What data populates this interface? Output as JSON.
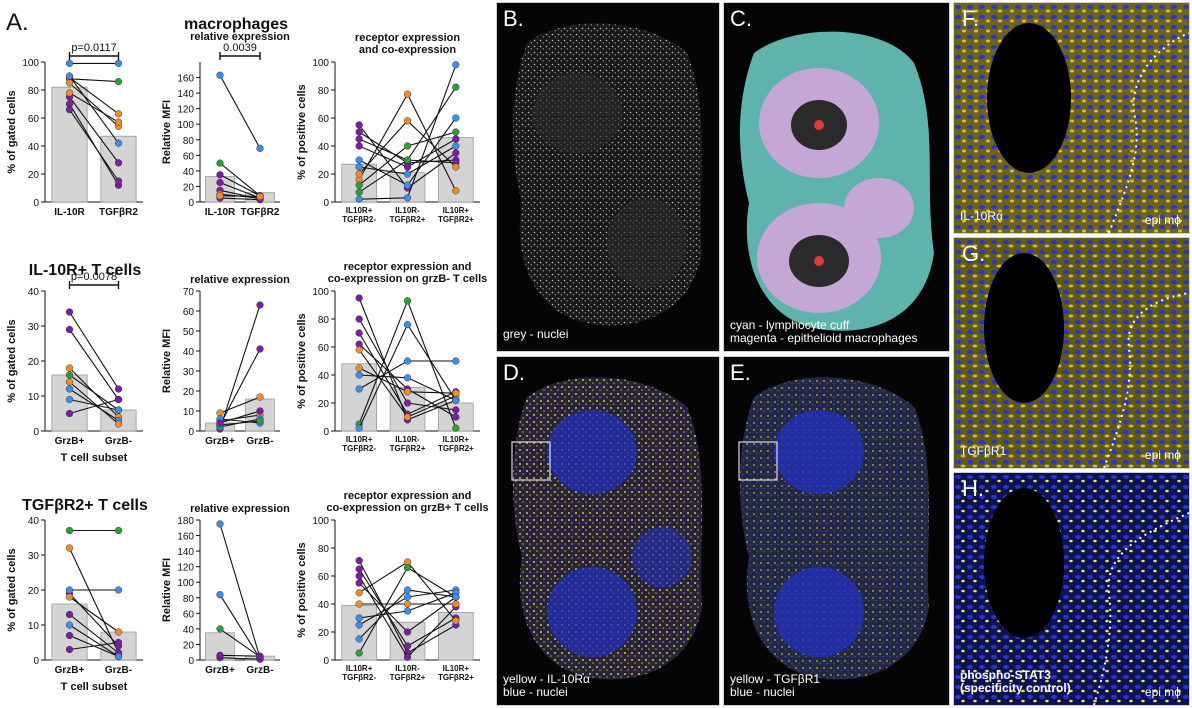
{
  "left": {
    "panel_letter": "A.",
    "row1": {
      "group_title": "macrophages",
      "c1": {
        "ylabel": "% of gated cells",
        "pvalue": "p=0.0117",
        "xlabel": ""
      },
      "c2": {
        "title": "relative expression",
        "ylabel": "Relative MFI",
        "pvalue": "0.0039"
      },
      "c3": {
        "title": "receptor expression\nand co-expression",
        "ylabel": "% of positive cells"
      }
    },
    "row2": {
      "group_title": "IL-10R+ T cells",
      "c1": {
        "ylabel": "% of gated cells",
        "pvalue": "p=0.0078",
        "xlabel": "T cell subset"
      },
      "c2": {
        "title": "relative expression",
        "ylabel": "Relative MFI"
      },
      "c3": {
        "title": "receptor expression and\nco-expression on grzB- T cells",
        "ylabel": "% of positive cells"
      }
    },
    "row3": {
      "group_title": "TGFβR2+ T cells",
      "c1": {
        "ylabel": "% of gated cells",
        "xlabel": "T cell subset"
      },
      "c2": {
        "title": "relative expression",
        "ylabel": "Relative MFI"
      },
      "c3": {
        "title": "receptor expression and\nco-expression on grzB+ T cells",
        "ylabel": "% of positive cells"
      }
    }
  },
  "micro": {
    "B": {
      "letter": "B.",
      "caption": "grey - nuclei"
    },
    "C": {
      "letter": "C.",
      "caption": "cyan - lymphocyte cuff\nmagenta - epithelioid macrophages"
    },
    "D": {
      "letter": "D.",
      "caption": "yellow - IL-10Rα\nblue - nuclei"
    },
    "E": {
      "letter": "E.",
      "caption": "yellow - TGFβR1\nblue - nuclei"
    },
    "F": {
      "letter": "F.",
      "caption": "IL-10Rα",
      "corner": "epi mϕ"
    },
    "G": {
      "letter": "G.",
      "caption": "TGFβR1",
      "corner": "epi mϕ"
    },
    "H": {
      "letter": "H.",
      "caption": "phospho-STAT3\n(specificity control)",
      "corner": "epi mϕ"
    }
  },
  "colors": {
    "purple": "#7b1fa2",
    "orange": "#f28c28",
    "green": "#2e9e3a",
    "blue": "#3d8ee6",
    "bar": "#d4d4d4",
    "yellow": "#d9c93a",
    "nuclei_blue": "#1f2fb8",
    "cyan": "#6fd3c9",
    "magenta": "#c5a7d6"
  },
  "chart_data": [
    {
      "type": "bar",
      "id": "A-r1-c1",
      "title": "",
      "categories": [
        "IL-10R",
        "TGFβR2"
      ],
      "values": [
        82,
        47
      ],
      "ylabel": "% of gated cells",
      "ylim": [
        0,
        100
      ],
      "yticks": [
        0,
        20,
        40,
        60,
        80,
        100
      ],
      "annotation": "p=0.0117",
      "paired": [
        {
          "color": "purple",
          "v": [
            70,
            12
          ]
        },
        {
          "color": "purple",
          "v": [
            75,
            28
          ]
        },
        {
          "color": "green",
          "v": [
            88,
            86
          ]
        },
        {
          "color": "blue",
          "v": [
            99,
            99
          ]
        },
        {
          "color": "orange",
          "v": [
            89,
            63
          ]
        },
        {
          "color": "orange",
          "v": [
            85,
            54
          ]
        },
        {
          "color": "blue",
          "v": [
            90,
            42
          ]
        },
        {
          "color": "purple",
          "v": [
            66,
            15
          ]
        },
        {
          "color": "orange",
          "v": [
            78,
            57
          ]
        }
      ]
    },
    {
      "type": "bar",
      "id": "A-r1-c2",
      "title": "relative expression",
      "categories": [
        "IL-10R",
        "TGFβR2"
      ],
      "values": [
        33,
        12
      ],
      "ylabel": "Relative MFI",
      "ylim": [
        0,
        180
      ],
      "yticks": [
        0,
        20,
        40,
        60,
        80,
        100,
        120,
        140,
        160
      ],
      "annotation": "0.0039",
      "paired": [
        {
          "color": "blue",
          "v": [
            163,
            69
          ]
        },
        {
          "color": "green",
          "v": [
            50,
            8
          ]
        },
        {
          "color": "purple",
          "v": [
            35,
            8
          ]
        },
        {
          "color": "purple",
          "v": [
            25,
            5
          ]
        },
        {
          "color": "purple",
          "v": [
            15,
            4
          ]
        },
        {
          "color": "orange",
          "v": [
            10,
            5
          ]
        },
        {
          "color": "purple",
          "v": [
            5,
            3
          ]
        },
        {
          "color": "orange",
          "v": [
            8,
            7
          ]
        }
      ]
    },
    {
      "type": "bar",
      "id": "A-r1-c3",
      "title": "receptor expression\nand co-expression",
      "categories": [
        "IL10R+\nTGFβR2-",
        "IL10R-\nTGFβR2+",
        "IL10R+\nTGFβR2+"
      ],
      "values": [
        27,
        21,
        46
      ],
      "ylabel": "% of positive cells",
      "ylim": [
        0,
        100
      ],
      "yticks": [
        0,
        20,
        40,
        60,
        80,
        100
      ],
      "paired": [
        {
          "color": "purple",
          "v": [
            55,
            10,
            35
          ]
        },
        {
          "color": "purple",
          "v": [
            50,
            28,
            30
          ]
        },
        {
          "color": "purple",
          "v": [
            45,
            30,
            28
          ]
        },
        {
          "color": "purple",
          "v": [
            40,
            25,
            45
          ]
        },
        {
          "color": "orange",
          "v": [
            16,
            77,
            8
          ]
        },
        {
          "color": "orange",
          "v": [
            20,
            58,
            25
          ]
        },
        {
          "color": "green",
          "v": [
            7,
            30,
            82
          ]
        },
        {
          "color": "green",
          "v": [
            12,
            40,
            50
          ]
        },
        {
          "color": "blue",
          "v": [
            2,
            3,
            98
          ]
        },
        {
          "color": "blue",
          "v": [
            30,
            12,
            60
          ]
        },
        {
          "color": "blue",
          "v": [
            25,
            20,
            40
          ]
        }
      ]
    },
    {
      "type": "bar",
      "id": "A-r2-c1",
      "title": "",
      "categories": [
        "GrzB+",
        "GrzB-"
      ],
      "values": [
        16,
        6
      ],
      "xlabel": "T cell subset",
      "ylabel": "% of gated cells",
      "ylim": [
        0,
        40
      ],
      "yticks": [
        0,
        10,
        20,
        30,
        40
      ],
      "annotation": "p=0.0078",
      "paired": [
        {
          "color": "purple",
          "v": [
            34,
            12
          ]
        },
        {
          "color": "purple",
          "v": [
            29,
            9
          ]
        },
        {
          "color": "orange",
          "v": [
            18,
            4
          ]
        },
        {
          "color": "green",
          "v": [
            16,
            6
          ]
        },
        {
          "color": "blue",
          "v": [
            12,
            3
          ]
        },
        {
          "color": "blue",
          "v": [
            9,
            6
          ]
        },
        {
          "color": "purple",
          "v": [
            5,
            9
          ]
        },
        {
          "color": "orange",
          "v": [
            14,
            2
          ]
        }
      ]
    },
    {
      "type": "bar",
      "id": "A-r2-c2",
      "title": "relative expression",
      "categories": [
        "GrzB+",
        "GrzB-"
      ],
      "values": [
        4,
        16
      ],
      "ylabel": "Relative MFI",
      "ylim": [
        0,
        70
      ],
      "yticks": [
        0,
        10,
        20,
        30,
        40,
        50,
        60,
        70
      ],
      "paired": [
        {
          "color": "purple",
          "v": [
            1,
            63
          ]
        },
        {
          "color": "purple",
          "v": [
            3,
            41
          ]
        },
        {
          "color": "orange",
          "v": [
            9,
            17
          ]
        },
        {
          "color": "orange",
          "v": [
            5,
            8
          ]
        },
        {
          "color": "blue",
          "v": [
            2,
            6
          ]
        },
        {
          "color": "blue",
          "v": [
            6,
            4
          ]
        },
        {
          "color": "green",
          "v": [
            3,
            5
          ]
        },
        {
          "color": "purple",
          "v": [
            4,
            10
          ]
        }
      ]
    },
    {
      "type": "bar",
      "id": "A-r2-c3",
      "title": "receptor expression and\nco-expression on grzB- T cells",
      "categories": [
        "IL10R+\nTGFβR2-",
        "IL10R-\nTGFβR2+",
        "IL10R+\nTGFβR2+"
      ],
      "values": [
        48,
        31,
        20
      ],
      "ylabel": "% of positive cells",
      "ylim": [
        0,
        100
      ],
      "yticks": [
        0,
        20,
        40,
        60,
        80,
        100
      ],
      "paired": [
        {
          "color": "purple",
          "v": [
            95,
            8,
            22
          ]
        },
        {
          "color": "purple",
          "v": [
            80,
            20,
            15
          ]
        },
        {
          "color": "purple",
          "v": [
            70,
            12,
            28
          ]
        },
        {
          "color": "purple",
          "v": [
            62,
            30,
            10
          ]
        },
        {
          "color": "orange",
          "v": [
            58,
            10,
            25
          ]
        },
        {
          "color": "orange",
          "v": [
            45,
            28,
            27
          ]
        },
        {
          "color": "green",
          "v": [
            5,
            93,
            2
          ]
        },
        {
          "color": "blue",
          "v": [
            2,
            76,
            22
          ]
        },
        {
          "color": "blue",
          "v": [
            30,
            50,
            50
          ]
        },
        {
          "color": "blue",
          "v": [
            40,
            38,
            22
          ]
        }
      ]
    },
    {
      "type": "bar",
      "id": "A-r3-c1",
      "title": "",
      "categories": [
        "GrzB+",
        "GrzB-"
      ],
      "values": [
        16,
        8
      ],
      "xlabel": "T cell subset",
      "ylabel": "% of gated cells",
      "ylim": [
        0,
        40
      ],
      "yticks": [
        0,
        10,
        20,
        30,
        40
      ],
      "paired": [
        {
          "color": "green",
          "v": [
            37,
            37
          ]
        },
        {
          "color": "orange",
          "v": [
            32,
            2
          ]
        },
        {
          "color": "purple",
          "v": [
            19,
            4
          ]
        },
        {
          "color": "purple",
          "v": [
            13,
            2
          ]
        },
        {
          "color": "blue",
          "v": [
            20,
            20
          ]
        },
        {
          "color": "orange",
          "v": [
            18,
            8
          ]
        },
        {
          "color": "purple",
          "v": [
            7,
            1
          ]
        },
        {
          "color": "purple",
          "v": [
            3,
            5
          ]
        },
        {
          "color": "blue",
          "v": [
            10,
            1
          ]
        }
      ]
    },
    {
      "type": "bar",
      "id": "A-r3-c2",
      "title": "relative expression",
      "categories": [
        "GrzB+",
        "GrzB-"
      ],
      "values": [
        35,
        5
      ],
      "ylabel": "Relative MFI",
      "ylim": [
        0,
        180
      ],
      "yticks": [
        0,
        20,
        40,
        60,
        80,
        100,
        120,
        140,
        160,
        180
      ],
      "paired": [
        {
          "color": "blue",
          "v": [
            175,
            3
          ]
        },
        {
          "color": "blue",
          "v": [
            84,
            2
          ]
        },
        {
          "color": "green",
          "v": [
            40,
            4
          ]
        },
        {
          "color": "purple",
          "v": [
            3,
            1
          ]
        },
        {
          "color": "purple",
          "v": [
            6,
            5
          ]
        }
      ]
    },
    {
      "type": "bar",
      "id": "A-r3-c3",
      "title": "receptor expression and\nco-expression on grzB+ T cells",
      "categories": [
        "IL10R+\nTGFβR2-",
        "IL10R-\nTGFβR2+",
        "IL10R+\nTGFβR2+"
      ],
      "values": [
        39,
        27,
        34
      ],
      "ylabel": "% of positive cells",
      "ylim": [
        0,
        100
      ],
      "yticks": [
        0,
        20,
        40,
        60,
        80,
        100
      ],
      "paired": [
        {
          "color": "purple",
          "v": [
            71,
            5,
            25
          ]
        },
        {
          "color": "purple",
          "v": [
            65,
            10,
            30
          ]
        },
        {
          "color": "purple",
          "v": [
            60,
            2,
            38
          ]
        },
        {
          "color": "purple",
          "v": [
            55,
            20,
            45
          ]
        },
        {
          "color": "orange",
          "v": [
            48,
            70,
            28
          ]
        },
        {
          "color": "orange",
          "v": [
            40,
            40,
            40
          ]
        },
        {
          "color": "green",
          "v": [
            5,
            66,
            45
          ]
        },
        {
          "color": "blue",
          "v": [
            25,
            45,
            50
          ]
        },
        {
          "color": "blue",
          "v": [
            30,
            35,
            48
          ]
        },
        {
          "color": "blue",
          "v": [
            15,
            50,
            45
          ]
        }
      ]
    }
  ]
}
